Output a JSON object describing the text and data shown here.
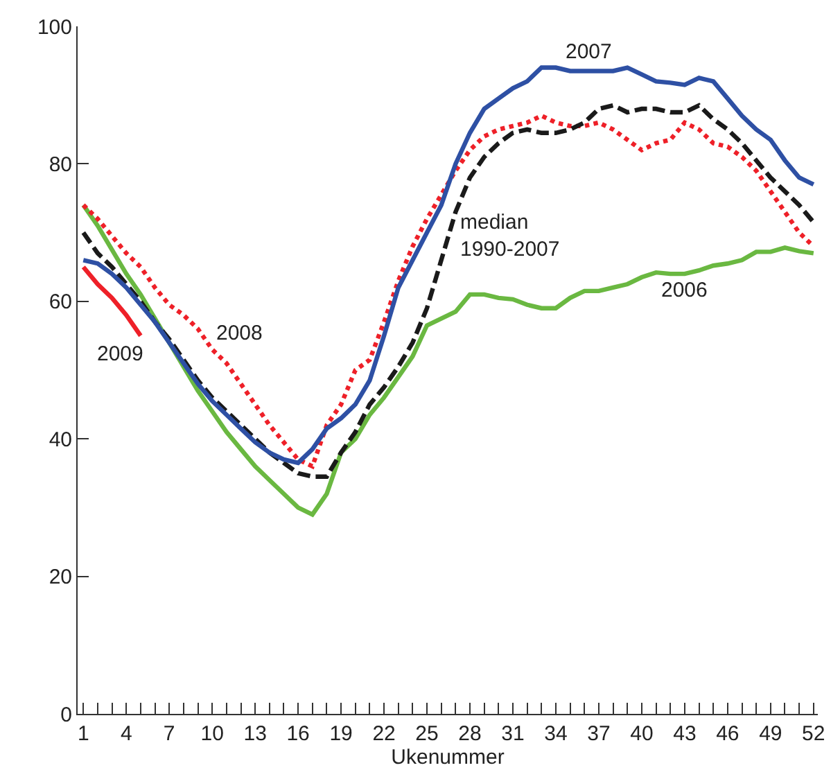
{
  "chart_data": {
    "type": "line",
    "xlabel": "Ukenummer",
    "x": [
      1,
      2,
      3,
      4,
      5,
      6,
      7,
      8,
      9,
      10,
      11,
      12,
      13,
      14,
      15,
      16,
      17,
      18,
      19,
      20,
      21,
      22,
      23,
      24,
      25,
      26,
      27,
      28,
      29,
      30,
      31,
      32,
      33,
      34,
      35,
      36,
      37,
      38,
      39,
      40,
      41,
      42,
      43,
      44,
      45,
      46,
      47,
      48,
      49,
      50,
      51,
      52
    ],
    "series": [
      {
        "name": "2006",
        "color": "#6ab841",
        "line_style": "solid",
        "values": [
          74,
          71,
          67.5,
          64,
          61,
          57.5,
          54,
          50.5,
          47,
          44,
          41,
          38.5,
          36,
          34,
          32,
          30,
          29,
          32,
          38,
          40,
          43.5,
          46,
          49,
          52,
          56.5,
          57.5,
          58.5,
          61,
          61,
          60.5,
          60.3,
          59.5,
          59,
          59,
          60.5,
          61.5,
          61.5,
          62,
          62.5,
          63.5,
          64.2,
          64,
          64,
          64.5,
          65.2,
          65.5,
          66,
          67.2,
          67.2,
          67.8,
          67.3,
          67
        ]
      },
      {
        "name": "2008",
        "color": "#ee2028",
        "line_style": "dotted",
        "values": [
          74,
          72,
          69.5,
          67,
          65,
          62,
          59.5,
          58,
          56,
          53,
          51,
          48,
          45,
          42,
          39.5,
          37,
          36,
          42,
          45,
          50,
          51.5,
          57,
          63,
          68,
          72,
          75.5,
          79,
          82,
          84,
          85,
          85.5,
          86,
          87,
          86,
          85.5,
          85.5,
          86,
          85,
          83.5,
          82,
          83,
          83.5,
          86,
          85,
          83,
          82.5,
          81,
          79,
          76,
          73,
          70,
          68
        ]
      },
      {
        "name": "median\n1990-2007",
        "color": "#1a1a1a",
        "line_style": "dashed",
        "values": [
          70,
          67,
          65,
          62.5,
          60,
          57,
          54.5,
          51.5,
          48.5,
          46,
          44,
          42,
          40,
          38,
          36.5,
          35,
          34.5,
          34.5,
          38,
          41,
          45,
          47.5,
          50.5,
          54,
          59,
          66,
          73,
          78,
          81,
          83,
          84.5,
          85,
          84.5,
          84.5,
          85,
          86,
          88,
          88.5,
          87.5,
          88,
          88,
          87.5,
          87.5,
          88.5,
          86.5,
          85,
          83,
          80.5,
          78,
          76,
          74,
          71.5
        ]
      },
      {
        "name": "2007",
        "color": "#2e50a4",
        "line_style": "solid",
        "values": [
          66,
          65.5,
          64,
          62,
          59.5,
          57,
          54,
          51,
          48,
          45.5,
          43.5,
          41.5,
          39.5,
          38,
          37,
          36.5,
          38.5,
          41.5,
          43,
          45,
          48.5,
          55,
          62,
          66,
          70,
          74,
          80,
          84.5,
          88,
          89.5,
          91,
          92,
          94,
          94,
          93.5,
          93.5,
          93.5,
          93.5,
          94,
          93,
          92,
          91.8,
          91.5,
          92.5,
          92,
          89.5,
          87,
          85,
          83.5,
          80.5,
          78,
          77
        ]
      },
      {
        "name": "2009",
        "color": "#ee2028",
        "line_style": "solid",
        "x": [
          1,
          2,
          3,
          4,
          5
        ],
        "values": [
          65,
          62.5,
          60.5,
          58,
          55
        ]
      }
    ],
    "xlim": [
      0.6,
      52.3
    ],
    "ylim": [
      0,
      100
    ],
    "xticks": [
      1,
      {
        "value": 2,
        "label": null
      },
      {
        "value": 3,
        "label": null
      },
      4,
      {
        "value": 5,
        "label": null
      },
      {
        "value": 6,
        "label": null
      },
      7,
      {
        "value": 8,
        "label": null
      },
      {
        "value": 9,
        "label": null
      },
      10,
      {
        "value": 11,
        "label": null
      },
      {
        "value": 12,
        "label": null
      },
      13,
      {
        "value": 14,
        "label": null
      },
      {
        "value": 15,
        "label": null
      },
      16,
      {
        "value": 17,
        "label": null
      },
      {
        "value": 18,
        "label": null
      },
      19,
      {
        "value": 20,
        "label": null
      },
      {
        "value": 21,
        "label": null
      },
      22,
      {
        "value": 23,
        "label": null
      },
      {
        "value": 24,
        "label": null
      },
      25,
      {
        "value": 26,
        "label": null
      },
      {
        "value": 27,
        "label": null
      },
      28,
      {
        "value": 29,
        "label": null
      },
      {
        "value": 30,
        "label": null
      },
      31,
      {
        "value": 32,
        "label": null
      },
      {
        "value": 33,
        "label": null
      },
      34,
      {
        "value": 35,
        "label": null
      },
      {
        "value": 36,
        "label": null
      },
      37,
      {
        "value": 38,
        "label": null
      },
      {
        "value": 39,
        "label": null
      },
      40,
      {
        "value": 41,
        "label": null
      },
      {
        "value": 42,
        "label": null
      },
      43,
      {
        "value": 44,
        "label": null
      },
      {
        "value": 45,
        "label": null
      },
      46,
      {
        "value": 47,
        "label": null
      },
      {
        "value": 48,
        "label": null
      },
      49,
      {
        "value": 50,
        "label": null
      },
      {
        "value": 51,
        "label": null
      },
      52
    ],
    "yticks": [
      0,
      20,
      40,
      60,
      80,
      100
    ],
    "legend": false,
    "marker": "none"
  }
}
